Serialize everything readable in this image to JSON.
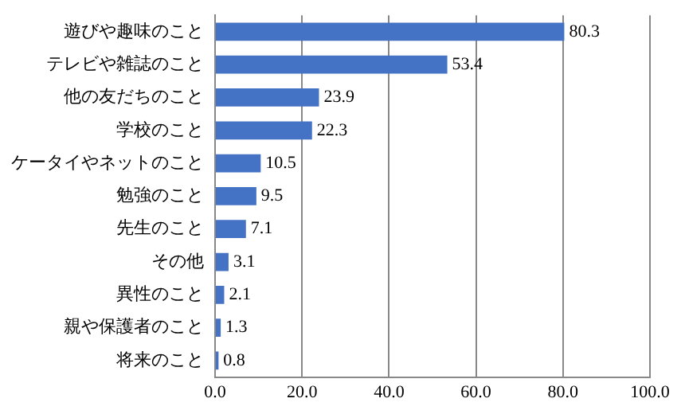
{
  "chart_data": {
    "type": "bar",
    "orientation": "horizontal",
    "categories": [
      "遊びや趣味のこと",
      "テレビや雑誌のこと",
      "他の友だちのこと",
      "学校のこと",
      "ケータイやネットのこと",
      "勉強のこと",
      "先生のこと",
      "その他",
      "異性のこと",
      "親や保護者のこと",
      "将来のこと"
    ],
    "values": [
      80.3,
      53.4,
      23.9,
      22.3,
      10.5,
      9.5,
      7.1,
      3.1,
      2.1,
      1.3,
      0.8
    ],
    "color": "#4472c4",
    "xlim": [
      0,
      100
    ],
    "xticks": [
      {
        "value": 0,
        "label": "0.0"
      },
      {
        "value": 20,
        "label": "20.0"
      },
      {
        "value": 40,
        "label": "40.0"
      },
      {
        "value": 60,
        "label": "60.0"
      },
      {
        "value": 80,
        "label": "80.0"
      },
      {
        "value": 100,
        "label": "100.0"
      }
    ],
    "grid": "x",
    "data_labels": true,
    "legend": false
  }
}
